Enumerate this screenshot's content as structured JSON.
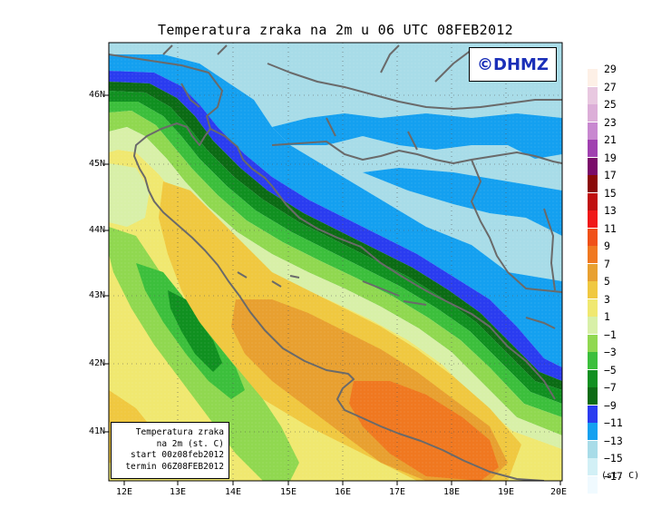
{
  "title": "Temperatura zraka na 2m u 06 UTC 08FEB2012",
  "logo": "©DHMZ",
  "info_box": {
    "line1": "Temperatura zraka",
    "line2": "na 2m (st. C)",
    "line3": "start 00z08feb2012",
    "line4": "termin 06Z08FEB2012"
  },
  "lat_labels": [
    "46N",
    "45N",
    "44N",
    "43N",
    "42N",
    "41N"
  ],
  "lon_labels": [
    "12E",
    "13E",
    "14E",
    "15E",
    "16E",
    "17E",
    "18E",
    "19E",
    "20E"
  ],
  "legend_labels": [
    "29",
    "27",
    "25",
    "23",
    "21",
    "19",
    "17",
    "15",
    "13",
    "11",
    "9",
    "7",
    "5",
    "3",
    "1",
    "−1",
    "−3",
    "−5",
    "−7",
    "−9",
    "−11",
    "−13",
    "−15",
    "−17"
  ],
  "legend_unit": "(st. C)",
  "colors": {
    "t29": "#fdf0e6",
    "t27": "#e8c8e0",
    "t25": "#dcaed8",
    "t23": "#c888d0",
    "t21": "#a040b0",
    "t19": "#7a0a6a",
    "t17": "#8a0808",
    "t15": "#c01010",
    "t13": "#f01818",
    "t11": "#f05018",
    "t9": "#f07820",
    "t7": "#e8a030",
    "t5": "#f0c840",
    "t3": "#f0e870",
    "t1": "#d8f0a8",
    "tm1": "#90d850",
    "tm3": "#3cbf3c",
    "tm5": "#109020",
    "tm7": "#0b6b14",
    "tm9": "#2a3cf0",
    "tm11": "#14a0f0",
    "tm13": "#a8dce8",
    "tm15": "#d2f0f6",
    "tm17": "#f0faff"
  }
}
